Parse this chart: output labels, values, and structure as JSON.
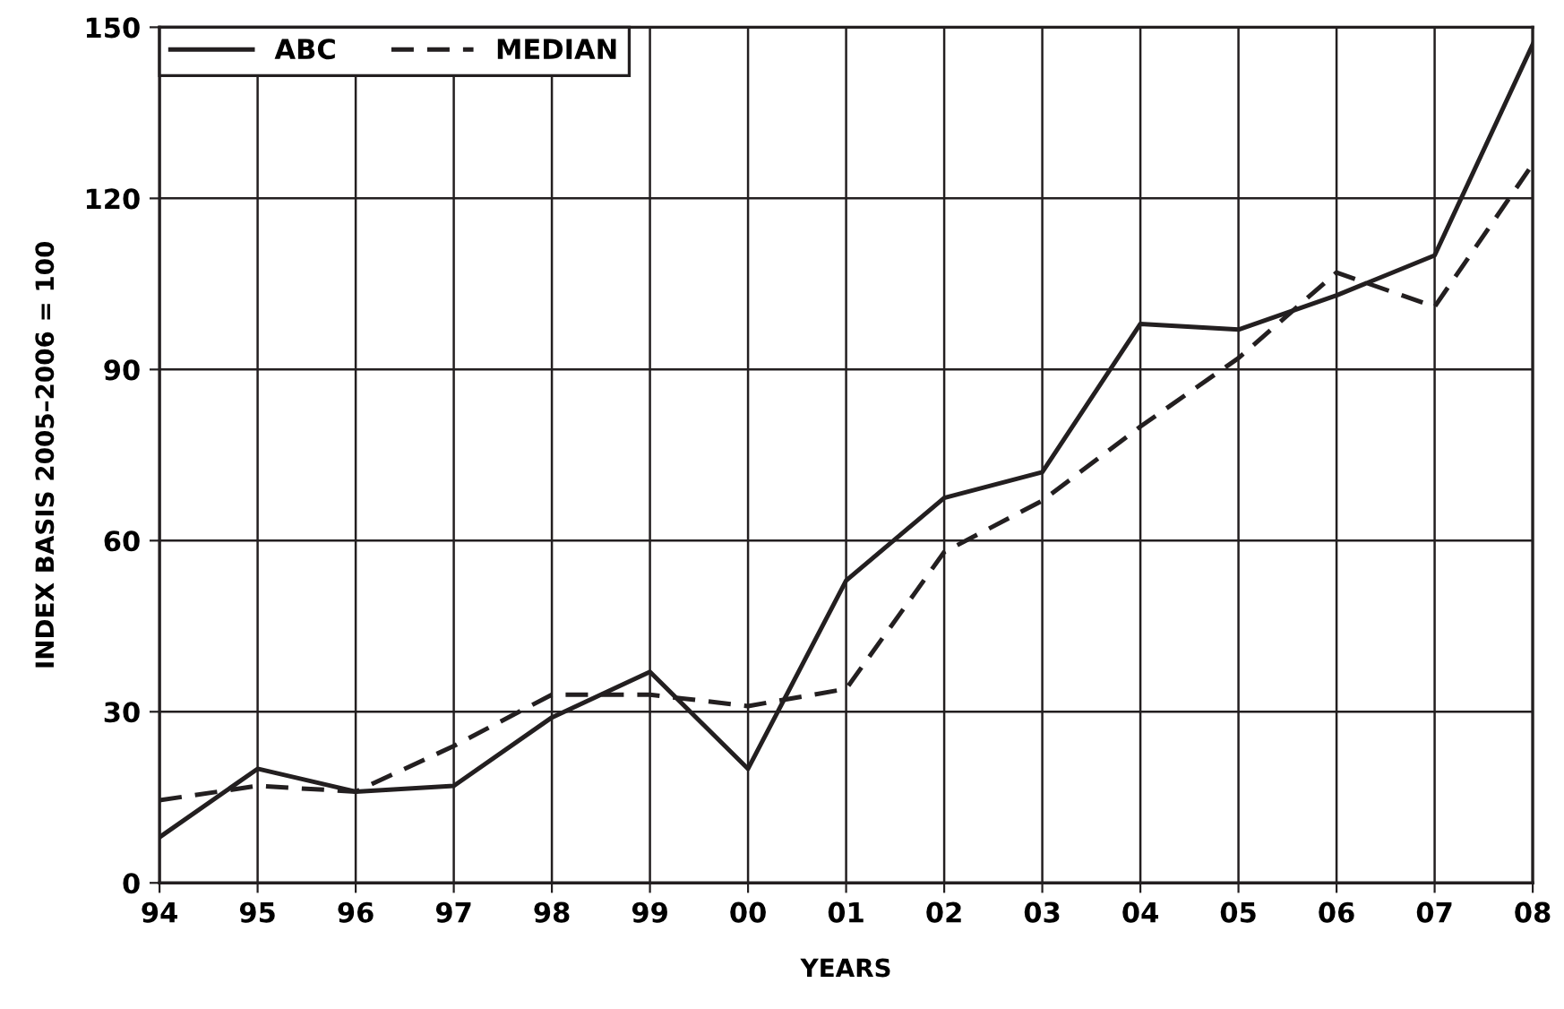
{
  "chart_data": {
    "type": "line",
    "xlabel": "YEARS",
    "ylabel": "INDEX BASIS 2005–2006 = 100",
    "categories": [
      "94",
      "95",
      "96",
      "97",
      "98",
      "99",
      "00",
      "01",
      "02",
      "03",
      "04",
      "05",
      "06",
      "07",
      "08"
    ],
    "series": [
      {
        "name": "ABC",
        "color": "#231f20",
        "line_style": "solid",
        "values": [
          8,
          20,
          16,
          17,
          29,
          37,
          20,
          53,
          67.5,
          72,
          98,
          97,
          103,
          110,
          147
        ]
      },
      {
        "name": "MEDIAN",
        "color": "#231f20",
        "line_style": "dashed",
        "values": [
          14.5,
          17,
          16,
          24,
          33,
          33,
          31,
          34,
          58,
          67,
          80,
          92,
          107,
          101,
          126
        ]
      }
    ],
    "ylim": [
      0,
      150
    ],
    "yticks": [
      0,
      30,
      60,
      90,
      120,
      150
    ],
    "grid": true,
    "legend": "top left",
    "marker": "none"
  }
}
